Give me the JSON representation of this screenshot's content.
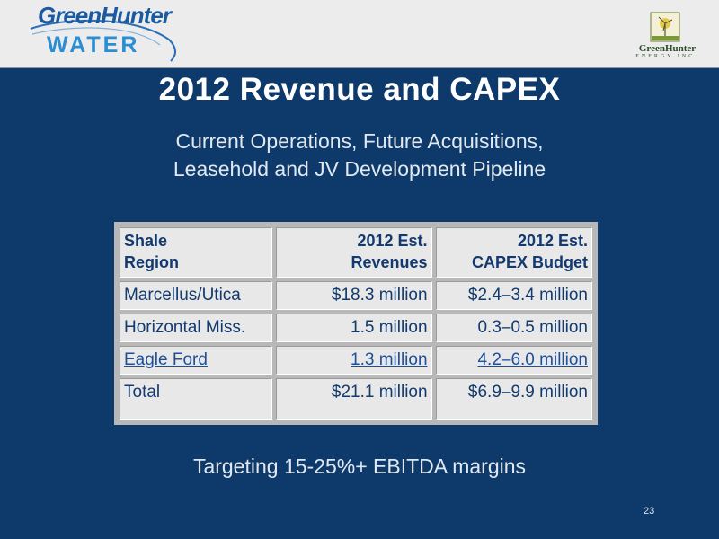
{
  "logos": {
    "left_line1": "GreenHunter",
    "left_line2": "WATER",
    "right_name": "GreenHunter",
    "right_sub": "ENERGY INC."
  },
  "title": "2012 Revenue and CAPEX",
  "subtitle": [
    "Current Operations, Future Acquisitions,",
    "Leasehold and JV Development Pipeline"
  ],
  "table": {
    "headers": [
      [
        "Shale",
        "Region"
      ],
      [
        "2012 Est.",
        "Revenues"
      ],
      [
        "2012 Est.",
        "CAPEX Budget"
      ]
    ],
    "rows": [
      [
        "Marcellus/Utica",
        "$18.3 million",
        "$2.4–3.4 million"
      ],
      [
        "Horizontal Miss.",
        "1.5 million",
        "0.3–0.5 million"
      ],
      [
        "Eagle Ford",
        "1.3 million",
        "4.2–6.0 million"
      ],
      [
        "Total",
        "$21.1 million",
        "$6.9–9.9 million"
      ]
    ]
  },
  "tagline": "Targeting 15-25%+ EBITDA margins",
  "page_number": "23",
  "colors": {
    "background": "#0d3a6b",
    "banner": "#ececec",
    "table_cell": "#e8e8e8",
    "table_text": "#123a6e"
  }
}
